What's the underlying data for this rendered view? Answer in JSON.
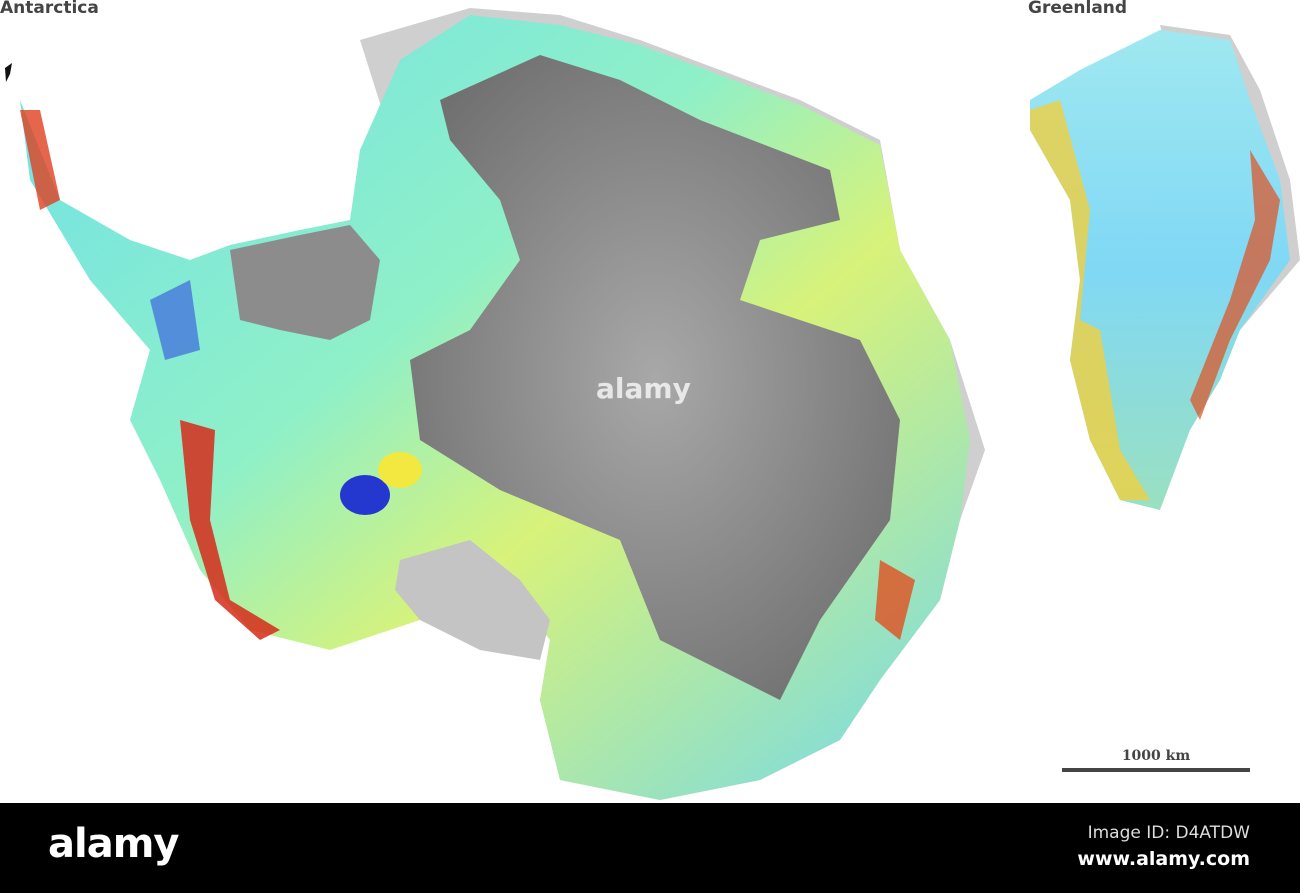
{
  "labels": {
    "antarctica": "Antarctica",
    "greenland": "Greenland"
  },
  "scale_bar": {
    "label": "1000 km"
  },
  "footer": {
    "logo": "alamy",
    "image_id": "Image ID: D4ATDW",
    "site": "www.alamy.com"
  },
  "watermark": "alamy",
  "colors": {
    "interior": "#8a8a8a",
    "low": "#2f3fd8",
    "mid": "#7fe6e0",
    "high": "#f5f060",
    "peak": "#d62a1a",
    "ice_shelf": "#c9c9c9"
  }
}
